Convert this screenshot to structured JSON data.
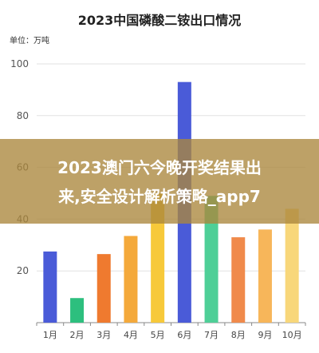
{
  "chart_data": {
    "type": "bar",
    "title": "2023中国磷酸二铵出口情况",
    "unit_label": "单位：万吨",
    "categories": [
      "1月",
      "2月",
      "3月",
      "4月",
      "5月",
      "6月",
      "7月",
      "8月",
      "9月",
      "10月"
    ],
    "values": [
      27.5,
      9.5,
      26.5,
      33.5,
      50,
      93,
      49,
      33,
      36,
      44
    ],
    "colors": [
      "#4a5bd8",
      "#2dbf7e",
      "#ef7a2f",
      "#f4a93b",
      "#f7c93a",
      "#4a5bd8",
      "#4ecf97",
      "#f08a4b",
      "#f7b65a",
      "#f8d77a"
    ],
    "ylim": [
      0,
      100
    ],
    "yticks": [
      20,
      40,
      60,
      80,
      100
    ],
    "grid": true,
    "legend": "none"
  },
  "overlay": {
    "line1": "2023澳门六今晚开奖结果出",
    "line2": "来,安全设计解析策略_app7"
  }
}
